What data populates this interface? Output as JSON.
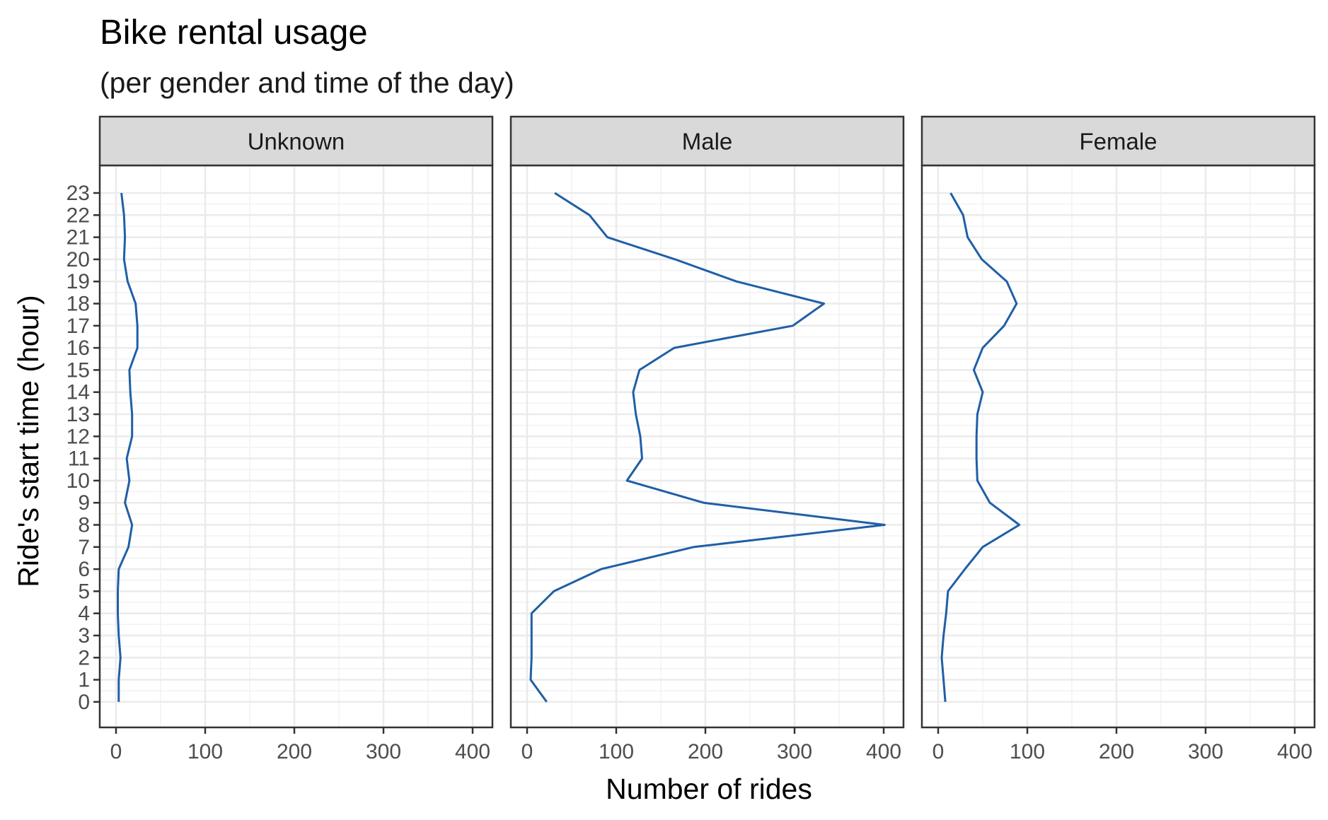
{
  "chart_data": {
    "type": "line",
    "title": "Bike rental usage",
    "subtitle": "(per gender and time of the day)",
    "xlabel": "Number of rides",
    "ylabel": "Ride's start time (hour)",
    "xlim": [
      0,
      400
    ],
    "ylim": [
      0,
      23
    ],
    "x_ticks": [
      0,
      100,
      200,
      300,
      400
    ],
    "y_ticks": [
      0,
      1,
      2,
      3,
      4,
      5,
      6,
      7,
      8,
      9,
      10,
      11,
      12,
      13,
      14,
      15,
      16,
      17,
      18,
      19,
      20,
      21,
      22,
      23
    ],
    "grid": true,
    "line_color": "#1f5fa6",
    "facets": [
      {
        "label": "Unknown",
        "series": {
          "hours": [
            0,
            1,
            2,
            3,
            4,
            5,
            6,
            7,
            8,
            9,
            10,
            11,
            12,
            13,
            14,
            15,
            16,
            17,
            18,
            19,
            20,
            21,
            22,
            23
          ],
          "rides": [
            3,
            3,
            5,
            3,
            2,
            2,
            3,
            14,
            18,
            10,
            15,
            12,
            18,
            18,
            16,
            15,
            24,
            24,
            22,
            13,
            9,
            10,
            9,
            6
          ]
        }
      },
      {
        "label": "Male",
        "series": {
          "hours": [
            0,
            1,
            2,
            3,
            4,
            5,
            6,
            7,
            8,
            9,
            10,
            11,
            12,
            13,
            14,
            15,
            16,
            17,
            18,
            19,
            20,
            21,
            22,
            23
          ],
          "rides": [
            22,
            4,
            5,
            5,
            5,
            30,
            83,
            187,
            401,
            198,
            112,
            129,
            127,
            122,
            119,
            126,
            165,
            298,
            333,
            235,
            166,
            90,
            70,
            31
          ]
        }
      },
      {
        "label": "Female",
        "series": {
          "hours": [
            0,
            1,
            2,
            3,
            4,
            5,
            6,
            7,
            8,
            9,
            10,
            11,
            12,
            13,
            14,
            15,
            16,
            17,
            18,
            19,
            20,
            21,
            22,
            23
          ],
          "rides": [
            8,
            6,
            4,
            6,
            9,
            11,
            30,
            50,
            91,
            58,
            44,
            43,
            43,
            44,
            50,
            40,
            50,
            74,
            88,
            77,
            49,
            33,
            28,
            14
          ]
        }
      }
    ]
  }
}
